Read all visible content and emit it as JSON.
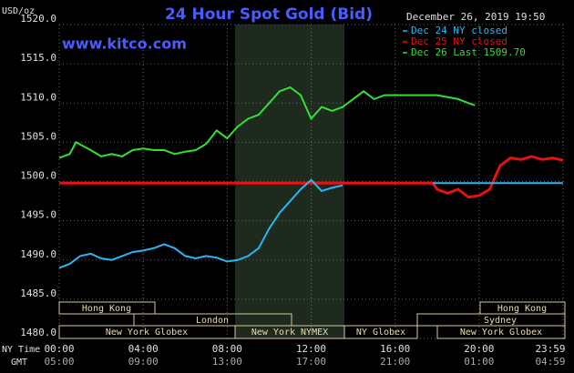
{
  "chart_data": {
    "type": "line",
    "title": "24 Hour Spot Gold (Bid)",
    "timestamp": "December 26, 2019 19:50",
    "website": "www.kitco.com",
    "y_label": "USD/oz",
    "x_label": "NY Time",
    "x2_label": "GMT",
    "xlim": [
      0,
      24
    ],
    "xticks": [
      {
        "value": 0,
        "label": "00:00"
      },
      {
        "value": 4,
        "label": "04:00"
      },
      {
        "value": 8,
        "label": "08:00"
      },
      {
        "value": 12,
        "label": "12:00"
      },
      {
        "value": 16,
        "label": "16:00"
      },
      {
        "value": 20,
        "label": "20:00"
      },
      {
        "value": 24,
        "label": "23:59"
      }
    ],
    "x2ticks": [
      {
        "value": 0,
        "label": "05:00"
      },
      {
        "value": 4,
        "label": "09:00"
      },
      {
        "value": 8,
        "label": "13:00"
      },
      {
        "value": 12,
        "label": "17:00"
      },
      {
        "value": 16,
        "label": "21:00"
      },
      {
        "value": 20,
        "label": "01:00"
      },
      {
        "value": 24,
        "label": "04:59"
      }
    ],
    "ylim": [
      1480,
      1520
    ],
    "yticks": [
      {
        "value": 1480,
        "label": "1480.0"
      },
      {
        "value": 1485,
        "label": "1485.0"
      },
      {
        "value": 1490,
        "label": "1490.0"
      },
      {
        "value": 1495,
        "label": "1495.0"
      },
      {
        "value": 1500,
        "label": "1500.0"
      },
      {
        "value": 1505,
        "label": "1505.0"
      },
      {
        "value": 1510,
        "label": "1510.0"
      },
      {
        "value": 1515,
        "label": "1515.0"
      },
      {
        "value": 1520,
        "label": "1520.0"
      }
    ],
    "grid": true,
    "sessions": [
      "Hong Kong",
      "London",
      "New York Globex",
      "New York NYMEX",
      "NY Globex",
      "Hong Kong",
      "Sydney",
      "New York Globex"
    ],
    "series": [
      {
        "name": "Dec 24 NY closed",
        "color": "#29b6f6",
        "x": [
          0,
          0.5,
          1,
          1.5,
          2,
          2.5,
          3,
          3.5,
          4,
          4.5,
          5,
          5.5,
          6,
          6.5,
          7,
          7.5,
          8,
          8.5,
          9,
          9.5,
          10,
          10.5,
          11,
          11.5,
          12,
          12.5,
          13,
          13.5,
          14,
          17.8,
          24
        ],
        "values": [
          1489,
          1489.5,
          1490.5,
          1490.8,
          1490.2,
          1490,
          1490.5,
          1491,
          1491.2,
          1491.5,
          1492,
          1491.5,
          1490.5,
          1490.2,
          1490.5,
          1490.3,
          1489.8,
          1490,
          1490.5,
          1491.5,
          1494,
          1496,
          1497.5,
          1499,
          1500.2,
          1498.8,
          1499.2,
          1499.5,
          null,
          1499.8,
          1499.8
        ]
      },
      {
        "name": "Dec 25 NY closed",
        "color": "#e81010",
        "x": [
          0,
          17.8,
          18,
          18.5,
          19,
          19.5,
          20,
          20.5,
          21,
          21.5,
          22,
          22.5,
          23,
          23.5,
          24
        ],
        "values": [
          1499.8,
          1499.8,
          1499,
          1498.5,
          1499,
          1498,
          1498.2,
          1499,
          1502,
          1503,
          1502.8,
          1503.2,
          1502.8,
          1503,
          1502.7
        ]
      },
      {
        "name": "Dec 26 Last 1509.70",
        "color": "#33e033",
        "x": [
          0,
          0.5,
          0.8,
          1.5,
          2,
          2.5,
          3,
          3.5,
          4,
          4.5,
          5,
          5.5,
          6,
          6.5,
          7,
          7.5,
          8,
          8.5,
          9,
          9.5,
          10,
          10.5,
          11,
          11.5,
          12,
          12.5,
          13,
          13.5,
          14,
          14.5,
          15,
          15.5,
          16,
          17,
          18,
          19,
          19.5,
          19.8
        ],
        "values": [
          1503,
          1503.5,
          1505,
          1504,
          1503.2,
          1503.5,
          1503.2,
          1504,
          1504.2,
          1504,
          1504,
          1503.5,
          1503.8,
          1504,
          1504.8,
          1506.5,
          1505.5,
          1507,
          1508,
          1508.5,
          1510,
          1511.5,
          1512,
          1511,
          1508,
          1509.5,
          1509,
          1509.5,
          1510.5,
          1511.5,
          1510.5,
          1511,
          1511,
          1511,
          1511,
          1510.5,
          1510,
          1509.7
        ]
      }
    ]
  }
}
